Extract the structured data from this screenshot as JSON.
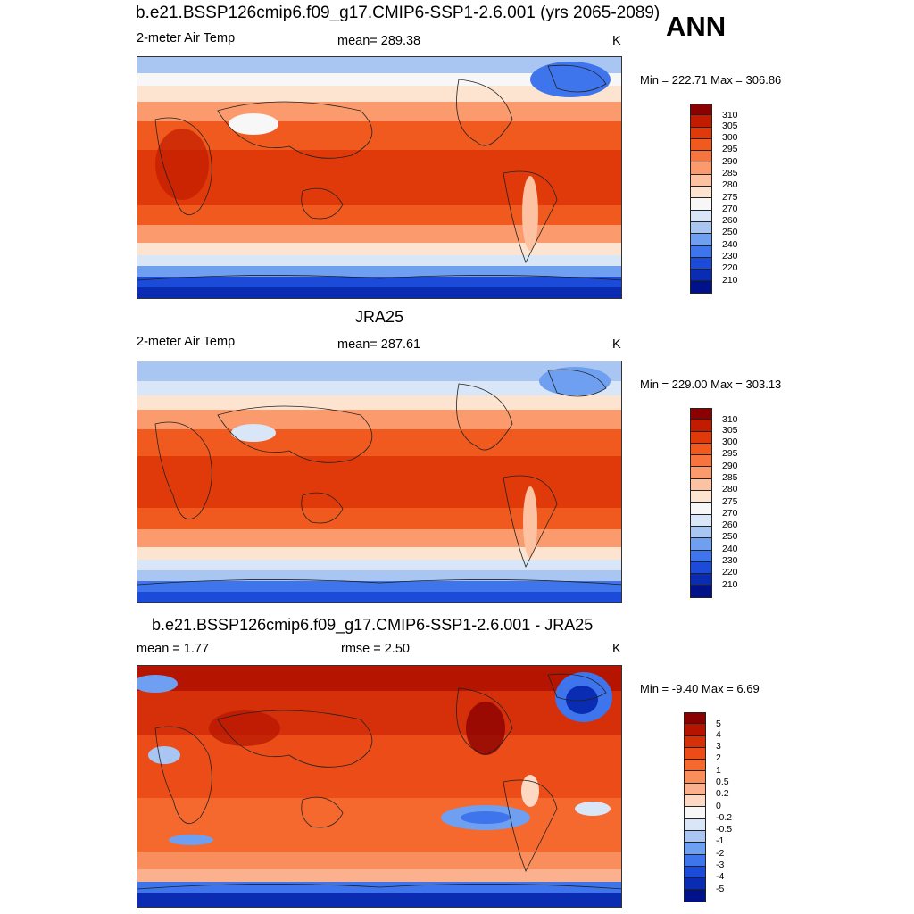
{
  "figure": {
    "main_title": "b.e21.BSSP126cmip6.f09_g17.CMIP6-SSP1-2.6.001 (yrs 2065-2089)",
    "season": "ANN"
  },
  "panels": [
    {
      "id": "model",
      "title": "",
      "left_label": "2-meter Air Temp",
      "center_label": "mean= 289.38",
      "right_label": "K",
      "minmax": "Min = 222.71 Max = 306.86",
      "colorbar_ticks": [
        "310",
        "305",
        "300",
        "295",
        "290",
        "285",
        "280",
        "275",
        "270",
        "260",
        "250",
        "240",
        "230",
        "220",
        "210"
      ],
      "colorbar_colors": [
        "#8b0000",
        "#c11b00",
        "#e03a0a",
        "#f05a1e",
        "#f7743e",
        "#fb9a6c",
        "#fdc2a1",
        "#fde4d0",
        "#f7f7f7",
        "#d8e6f7",
        "#a9c6f3",
        "#6f9ff0",
        "#3e74ec",
        "#1b4bd8",
        "#0a2cb2",
        "#00128a"
      ]
    },
    {
      "id": "obs",
      "title": "JRA25",
      "left_label": "2-meter Air Temp",
      "center_label": "mean= 287.61",
      "right_label": "K",
      "minmax": "Min = 229.00 Max = 303.13",
      "colorbar_ticks": [
        "310",
        "305",
        "300",
        "295",
        "290",
        "285",
        "280",
        "275",
        "270",
        "260",
        "250",
        "240",
        "230",
        "220",
        "210"
      ],
      "colorbar_colors": [
        "#8b0000",
        "#c11b00",
        "#e03a0a",
        "#f05a1e",
        "#f7743e",
        "#fb9a6c",
        "#fdc2a1",
        "#fde4d0",
        "#f7f7f7",
        "#d8e6f7",
        "#a9c6f3",
        "#6f9ff0",
        "#3e74ec",
        "#1b4bd8",
        "#0a2cb2",
        "#00128a"
      ]
    },
    {
      "id": "diff",
      "title": "b.e21.BSSP126cmip6.f09_g17.CMIP6-SSP1-2.6.001 - JRA25",
      "left_label": "mean =   1.77",
      "center_label": "rmse =   2.50",
      "right_label": "K",
      "minmax": "Min =  -9.40 Max =   6.69",
      "colorbar_ticks": [
        "5",
        "4",
        "3",
        "2",
        "1",
        "0.5",
        "0.2",
        "0",
        "-0.2",
        "-0.5",
        "-1",
        "-2",
        "-3",
        "-4",
        "-5"
      ],
      "colorbar_colors": [
        "#8b0000",
        "#b51400",
        "#d6300a",
        "#ec4d18",
        "#f5692e",
        "#f98d5c",
        "#fcb18e",
        "#fdd8c2",
        "#f7f7f7",
        "#d8e6f7",
        "#a9c6f3",
        "#6f9ff0",
        "#3e74ec",
        "#1b4bd8",
        "#0a2cb2",
        "#00128a"
      ]
    }
  ]
}
